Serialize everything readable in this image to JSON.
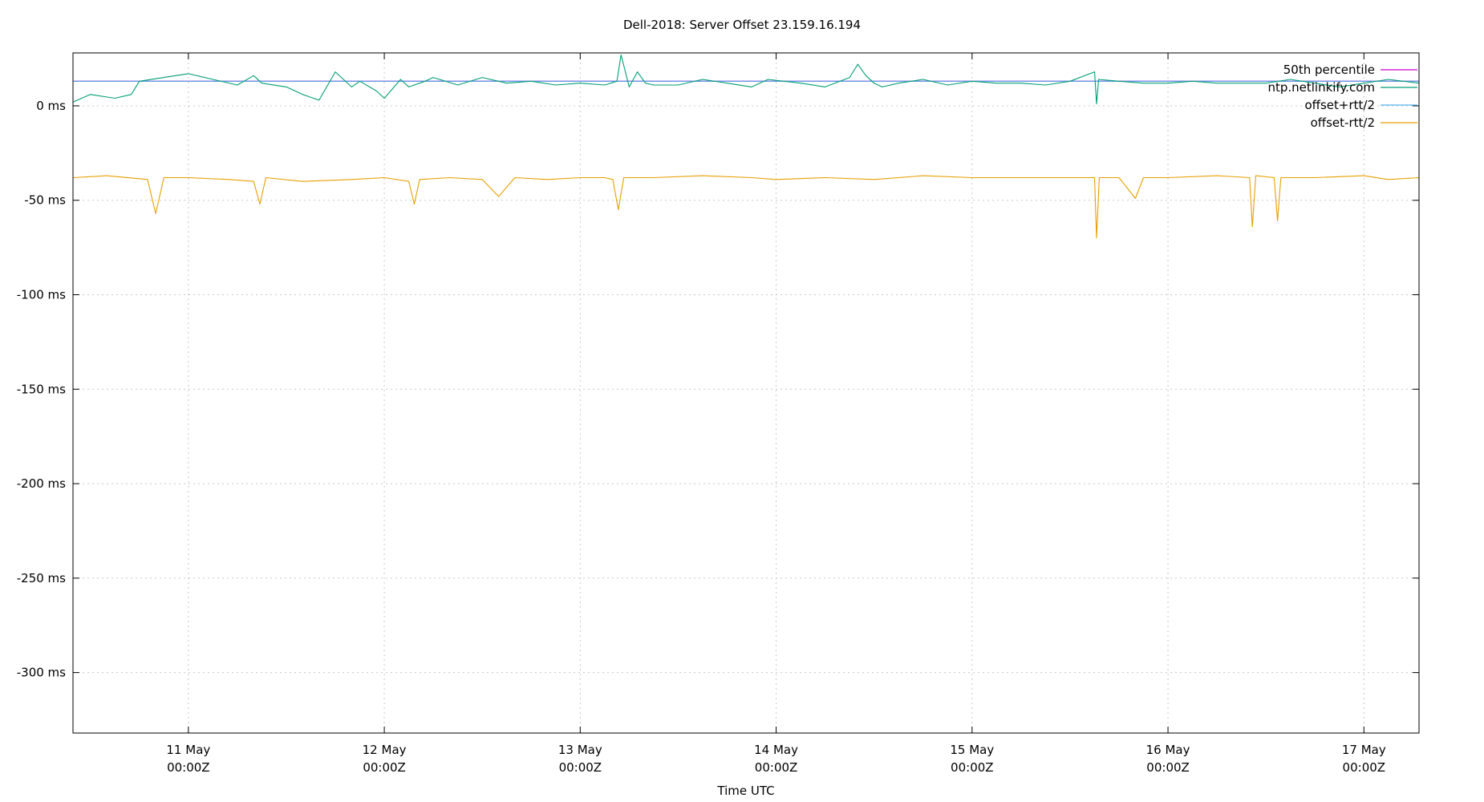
{
  "chart_data": {
    "type": "line",
    "title": "Dell-2018: Server Offset 23.159.16.194",
    "xlabel": "Time UTC",
    "ylabel": "",
    "xlim": [
      "2024-05-10T09:52Z",
      "2024-05-17T06:45Z"
    ],
    "ylim": [
      -332,
      28
    ],
    "grid": true,
    "legend_position": "top-right",
    "x_ticks": [
      {
        "line1": "11 May",
        "line2": "00:00Z",
        "t": "2024-05-11T00:00Z"
      },
      {
        "line1": "12 May",
        "line2": "00:00Z",
        "t": "2024-05-12T00:00Z"
      },
      {
        "line1": "13 May",
        "line2": "00:00Z",
        "t": "2024-05-13T00:00Z"
      },
      {
        "line1": "14 May",
        "line2": "00:00Z",
        "t": "2024-05-14T00:00Z"
      },
      {
        "line1": "15 May",
        "line2": "00:00Z",
        "t": "2024-05-15T00:00Z"
      },
      {
        "line1": "16 May",
        "line2": "00:00Z",
        "t": "2024-05-16T00:00Z"
      },
      {
        "line1": "17 May",
        "line2": "00:00Z",
        "t": "2024-05-17T00:00Z"
      }
    ],
    "y_ticks": [
      {
        "label": "0 ms",
        "value": 0
      },
      {
        "label": "-50 ms",
        "value": -50
      },
      {
        "label": "-100 ms",
        "value": -100
      },
      {
        "label": "-150 ms",
        "value": -150
      },
      {
        "label": "-200 ms",
        "value": -200
      },
      {
        "label": "-250 ms",
        "value": -250
      },
      {
        "label": "-300 ms",
        "value": -300
      }
    ],
    "series": [
      {
        "name": "50th percentile",
        "color": "#cc00cc",
        "x": [
          "2024-05-10T09:52Z",
          "2024-05-17T06:45Z"
        ],
        "values": [
          13,
          13
        ]
      },
      {
        "name": "ntp.netlinkify.com",
        "color": "#009e73",
        "x": [
          "2024-05-10T09:52Z",
          "2024-05-10T12:00Z",
          "2024-05-10T15:00Z",
          "2024-05-10T17:00Z",
          "2024-05-10T18:00Z",
          "2024-05-10T21:00Z",
          "2024-05-11T00:00Z",
          "2024-05-11T03:00Z",
          "2024-05-11T06:00Z",
          "2024-05-11T08:00Z",
          "2024-05-11T09:00Z",
          "2024-05-11T12:00Z",
          "2024-05-11T14:00Z",
          "2024-05-11T16:00Z",
          "2024-05-11T18:00Z",
          "2024-05-11T20:00Z",
          "2024-05-11T21:00Z",
          "2024-05-11T23:00Z",
          "2024-05-12T00:00Z",
          "2024-05-12T02:00Z",
          "2024-05-12T03:00Z",
          "2024-05-12T05:00Z",
          "2024-05-12T06:00Z",
          "2024-05-12T09:00Z",
          "2024-05-12T12:00Z",
          "2024-05-12T15:00Z",
          "2024-05-12T18:00Z",
          "2024-05-12T21:00Z",
          "2024-05-13T00:00Z",
          "2024-05-13T03:00Z",
          "2024-05-13T04:30Z",
          "2024-05-13T05:00Z",
          "2024-05-13T06:00Z",
          "2024-05-13T07:00Z",
          "2024-05-13T08:00Z",
          "2024-05-13T09:00Z",
          "2024-05-13T12:00Z",
          "2024-05-13T15:00Z",
          "2024-05-13T18:00Z",
          "2024-05-13T21:00Z",
          "2024-05-13T23:00Z",
          "2024-05-14T03:00Z",
          "2024-05-14T06:00Z",
          "2024-05-14T09:00Z",
          "2024-05-14T10:00Z",
          "2024-05-14T11:00Z",
          "2024-05-14T12:00Z",
          "2024-05-14T13:00Z",
          "2024-05-14T15:00Z",
          "2024-05-14T18:00Z",
          "2024-05-14T21:00Z",
          "2024-05-15T00:00Z",
          "2024-05-15T03:00Z",
          "2024-05-15T06:00Z",
          "2024-05-15T09:00Z",
          "2024-05-15T12:00Z",
          "2024-05-15T15:00Z",
          "2024-05-15T15:15Z",
          "2024-05-15T15:30Z",
          "2024-05-15T18:00Z",
          "2024-05-15T21:00Z",
          "2024-05-16T00:00Z",
          "2024-05-16T03:00Z",
          "2024-05-16T06:00Z",
          "2024-05-16T09:00Z",
          "2024-05-16T12:00Z",
          "2024-05-16T15:00Z",
          "2024-05-16T18:00Z",
          "2024-05-16T21:00Z",
          "2024-05-17T00:00Z",
          "2024-05-17T03:00Z",
          "2024-05-17T06:45Z"
        ],
        "values": [
          2,
          6,
          4,
          6,
          13,
          15,
          17,
          14,
          11,
          16,
          12,
          10,
          6,
          3,
          18,
          10,
          13,
          8,
          4,
          14,
          10,
          13,
          15,
          11,
          15,
          12,
          13,
          11,
          12,
          11,
          13,
          27,
          10,
          18,
          12,
          11,
          11,
          14,
          12,
          10,
          14,
          12,
          10,
          15,
          22,
          16,
          12,
          10,
          12,
          14,
          11,
          13,
          12,
          12,
          11,
          13,
          18,
          1,
          14,
          13,
          12,
          12,
          13,
          12,
          12,
          12,
          14,
          12,
          10,
          12,
          14,
          12
        ]
      },
      {
        "name": "offset+rtt/2",
        "color": "#56b4e9",
        "x": [
          "2024-05-10T09:52Z",
          "2024-05-17T06:45Z"
        ],
        "values": [
          13,
          13
        ]
      },
      {
        "name": "offset-rtt/2",
        "color": "#e69f00",
        "x": [
          "2024-05-10T09:52Z",
          "2024-05-10T14:00Z",
          "2024-05-10T19:00Z",
          "2024-05-10T20:00Z",
          "2024-05-10T21:00Z",
          "2024-05-11T00:00Z",
          "2024-05-11T05:00Z",
          "2024-05-11T08:00Z",
          "2024-05-11T08:45Z",
          "2024-05-11T09:30Z",
          "2024-05-11T14:00Z",
          "2024-05-11T20:00Z",
          "2024-05-12T00:00Z",
          "2024-05-12T03:00Z",
          "2024-05-12T03:40Z",
          "2024-05-12T04:20Z",
          "2024-05-12T08:00Z",
          "2024-05-12T12:00Z",
          "2024-05-12T14:00Z",
          "2024-05-12T16:00Z",
          "2024-05-12T20:00Z",
          "2024-05-13T00:00Z",
          "2024-05-13T03:00Z",
          "2024-05-13T04:00Z",
          "2024-05-13T04:40Z",
          "2024-05-13T05:20Z",
          "2024-05-13T09:00Z",
          "2024-05-13T15:00Z",
          "2024-05-13T21:00Z",
          "2024-05-14T00:00Z",
          "2024-05-14T06:00Z",
          "2024-05-14T12:00Z",
          "2024-05-14T18:00Z",
          "2024-05-15T00:00Z",
          "2024-05-15T06:00Z",
          "2024-05-15T12:00Z",
          "2024-05-15T15:00Z",
          "2024-05-15T15:15Z",
          "2024-05-15T15:35Z",
          "2024-05-15T18:00Z",
          "2024-05-15T20:00Z",
          "2024-05-15T21:00Z",
          "2024-05-16T00:00Z",
          "2024-05-16T06:00Z",
          "2024-05-16T10:00Z",
          "2024-05-16T10:20Z",
          "2024-05-16T10:45Z",
          "2024-05-16T13:00Z",
          "2024-05-16T13:25Z",
          "2024-05-16T13:50Z",
          "2024-05-16T18:00Z",
          "2024-05-17T00:00Z",
          "2024-05-17T03:00Z",
          "2024-05-17T06:45Z"
        ],
        "values": [
          -38,
          -37,
          -39,
          -57,
          -38,
          -38,
          -39,
          -40,
          -52,
          -38,
          -40,
          -39,
          -38,
          -40,
          -52,
          -39,
          -38,
          -39,
          -48,
          -38,
          -39,
          -38,
          -38,
          -39,
          -55,
          -38,
          -38,
          -37,
          -38,
          -39,
          -38,
          -39,
          -37,
          -38,
          -38,
          -38,
          -38,
          -70,
          -38,
          -38,
          -49,
          -38,
          -38,
          -37,
          -38,
          -64,
          -37,
          -38,
          -61,
          -38,
          -38,
          -37,
          -39,
          -38
        ]
      }
    ]
  }
}
